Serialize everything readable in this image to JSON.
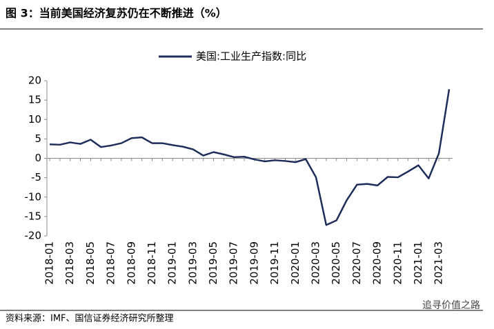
{
  "chart_data": {
    "type": "line",
    "title": "图 3：当前美国经济复苏仍在不断推进（%）",
    "source": "资料来源：IMF、国信证券经济研究所整理",
    "watermark": "追寻价值之路",
    "categories": [
      "2018-01",
      null,
      "2018-03",
      null,
      "2018-05",
      null,
      "2018-07",
      null,
      "2018-09",
      null,
      "2018-11",
      null,
      "2019-01",
      null,
      "2019-03",
      null,
      "2019-05",
      null,
      "2019-07",
      null,
      "2019-09",
      null,
      "2019-11",
      null,
      "2020-01",
      null,
      "2020-03",
      null,
      "2020-05",
      null,
      "2020-07",
      null,
      "2020-09",
      null,
      "2020-11",
      null,
      "2021-01",
      null,
      "2021-03",
      null
    ],
    "series": [
      {
        "name": "美国:工业生产指数:同比",
        "color": "#1f2d5a",
        "values": [
          3.6,
          3.5,
          4.1,
          3.7,
          4.8,
          2.9,
          3.3,
          3.9,
          5.2,
          5.4,
          3.9,
          3.9,
          3.4,
          3.0,
          2.3,
          0.7,
          1.6,
          1.0,
          0.3,
          0.4,
          -0.3,
          -0.8,
          -0.5,
          -0.7,
          -1.0,
          -0.2,
          -4.9,
          -17.2,
          -16.0,
          -10.8,
          -6.8,
          -6.6,
          -7.0,
          -4.8,
          -4.9,
          -3.4,
          -1.8,
          -5.2,
          1.3,
          17.8
        ]
      }
    ],
    "ylim": [
      -20,
      20
    ],
    "yticks": [
      -20,
      -15,
      -10,
      -5,
      0,
      5,
      10,
      15,
      20
    ],
    "legend": "top"
  }
}
